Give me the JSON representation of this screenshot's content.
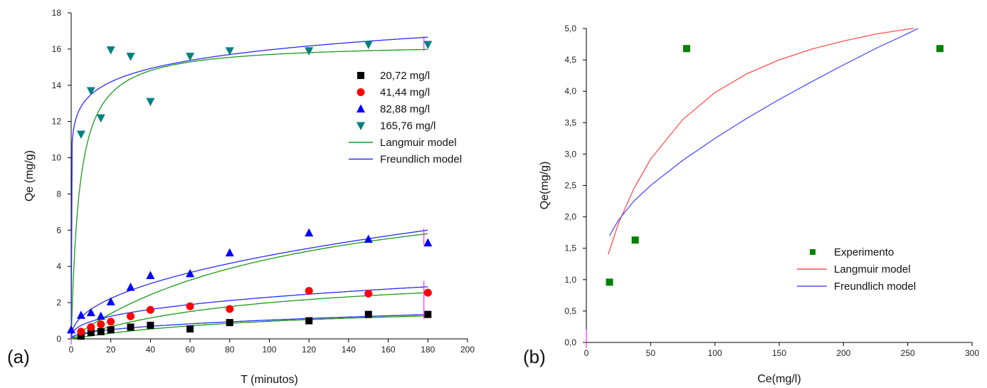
{
  "chart_data": [
    {
      "panel_label": "(a)",
      "type": "scatter",
      "xlabel": "T (minutos)",
      "ylabel": "Qe (mg/g)",
      "xlim": [
        0,
        200
      ],
      "ylim": [
        0,
        18
      ],
      "xticks": [
        0,
        20,
        40,
        60,
        80,
        100,
        120,
        140,
        160,
        180,
        200
      ],
      "yticks": [
        0,
        2,
        4,
        6,
        8,
        10,
        12,
        14,
        16,
        18
      ],
      "grid": false,
      "legend_position": "right",
      "series": [
        {
          "name": "20,72 mg/l",
          "kind": "points",
          "marker": "square",
          "color": "#000000",
          "x": [
            5,
            10,
            15,
            20,
            30,
            40,
            60,
            80,
            120,
            150,
            180
          ],
          "y": [
            0.15,
            0.35,
            0.4,
            0.5,
            0.65,
            0.75,
            0.55,
            0.9,
            1.0,
            1.35,
            1.35
          ]
        },
        {
          "name": "41,44 mg/l",
          "kind": "points",
          "marker": "circle",
          "color": "#ff0000",
          "x": [
            5,
            10,
            15,
            20,
            30,
            40,
            60,
            80,
            120,
            150,
            180
          ],
          "y": [
            0.4,
            0.65,
            0.8,
            0.95,
            1.25,
            1.6,
            1.8,
            1.65,
            2.65,
            2.5,
            2.55
          ]
        },
        {
          "name": "82,88 mg/l",
          "kind": "points",
          "marker": "triangle-up",
          "color": "#0000ff",
          "x": [
            0,
            5,
            10,
            15,
            20,
            30,
            40,
            60,
            80,
            120,
            150,
            180
          ],
          "y": [
            0.5,
            1.3,
            1.45,
            1.25,
            2.05,
            2.85,
            3.5,
            3.6,
            4.75,
            5.85,
            5.5,
            5.3
          ]
        },
        {
          "name": "165,76 mg/l",
          "kind": "points",
          "marker": "triangle-down",
          "color": "#008080",
          "x": [
            5,
            10,
            15,
            20,
            30,
            40,
            60,
            80,
            120,
            150,
            180
          ],
          "y": [
            11.3,
            13.7,
            12.2,
            15.95,
            15.6,
            13.1,
            15.6,
            15.9,
            15.9,
            16.25,
            16.25
          ]
        },
        {
          "name": "Langmuir model",
          "kind": "fit",
          "model": "langmuir",
          "color": "#1a9a1a",
          "params": [
            {
              "qmax": 2.05,
              "k": 0.009
            },
            {
              "qmax": 3.9,
              "k": 0.0105
            },
            {
              "qmax": 9.6,
              "k": 0.0085
            },
            {
              "qmax": 16.35,
              "k": 0.24
            }
          ]
        },
        {
          "name": "Freundlich model",
          "kind": "fit",
          "model": "freundlich",
          "color": "#2a2aff",
          "params": [
            {
              "a": 0.137,
              "b": 0.44
            },
            {
              "a": 0.4,
              "b": 0.38
            },
            {
              "a": 0.58,
              "b": 0.45
            },
            {
              "a": 11.4,
              "b": 0.073
            }
          ]
        }
      ]
    },
    {
      "panel_label": "(b)",
      "type": "scatter",
      "xlabel": "Ce(mg/l)",
      "ylabel": "Qe(mg/g)",
      "xlim": [
        0,
        300
      ],
      "ylim": [
        0,
        5.0
      ],
      "xticks": [
        "0",
        "50",
        "100",
        "150",
        "200",
        "250",
        "300"
      ],
      "yticks": [
        "0,0",
        "0,5",
        "1,0",
        "1,5",
        "2,0",
        "2,5",
        "3,0",
        "3,5",
        "4,0",
        "4,5",
        "5,0"
      ],
      "grid": false,
      "legend_position": "bottom-right",
      "series": [
        {
          "name": "Experimento",
          "kind": "points",
          "marker": "square",
          "color": "#008000",
          "x": [
            18,
            38,
            78,
            275
          ],
          "y": [
            0.96,
            1.63,
            4.68,
            4.68
          ]
        },
        {
          "name": "Langmuir model",
          "kind": "curve",
          "color": "#ff5050",
          "x": [
            17,
            25,
            37,
            50,
            75,
            100,
            125,
            150,
            175,
            200,
            225,
            250,
            255
          ],
          "y": [
            1.4,
            1.9,
            2.45,
            2.92,
            3.55,
            3.98,
            4.28,
            4.5,
            4.67,
            4.8,
            4.91,
            4.99,
            5.0
          ]
        },
        {
          "name": "Freundlich model",
          "kind": "curve",
          "color": "#5050ff",
          "x": [
            18,
            25,
            37,
            50,
            75,
            100,
            125,
            150,
            175,
            200,
            225,
            250,
            258
          ],
          "y": [
            1.7,
            1.95,
            2.25,
            2.5,
            2.9,
            3.25,
            3.57,
            3.87,
            4.15,
            4.42,
            4.68,
            4.92,
            5.0
          ]
        }
      ]
    }
  ]
}
